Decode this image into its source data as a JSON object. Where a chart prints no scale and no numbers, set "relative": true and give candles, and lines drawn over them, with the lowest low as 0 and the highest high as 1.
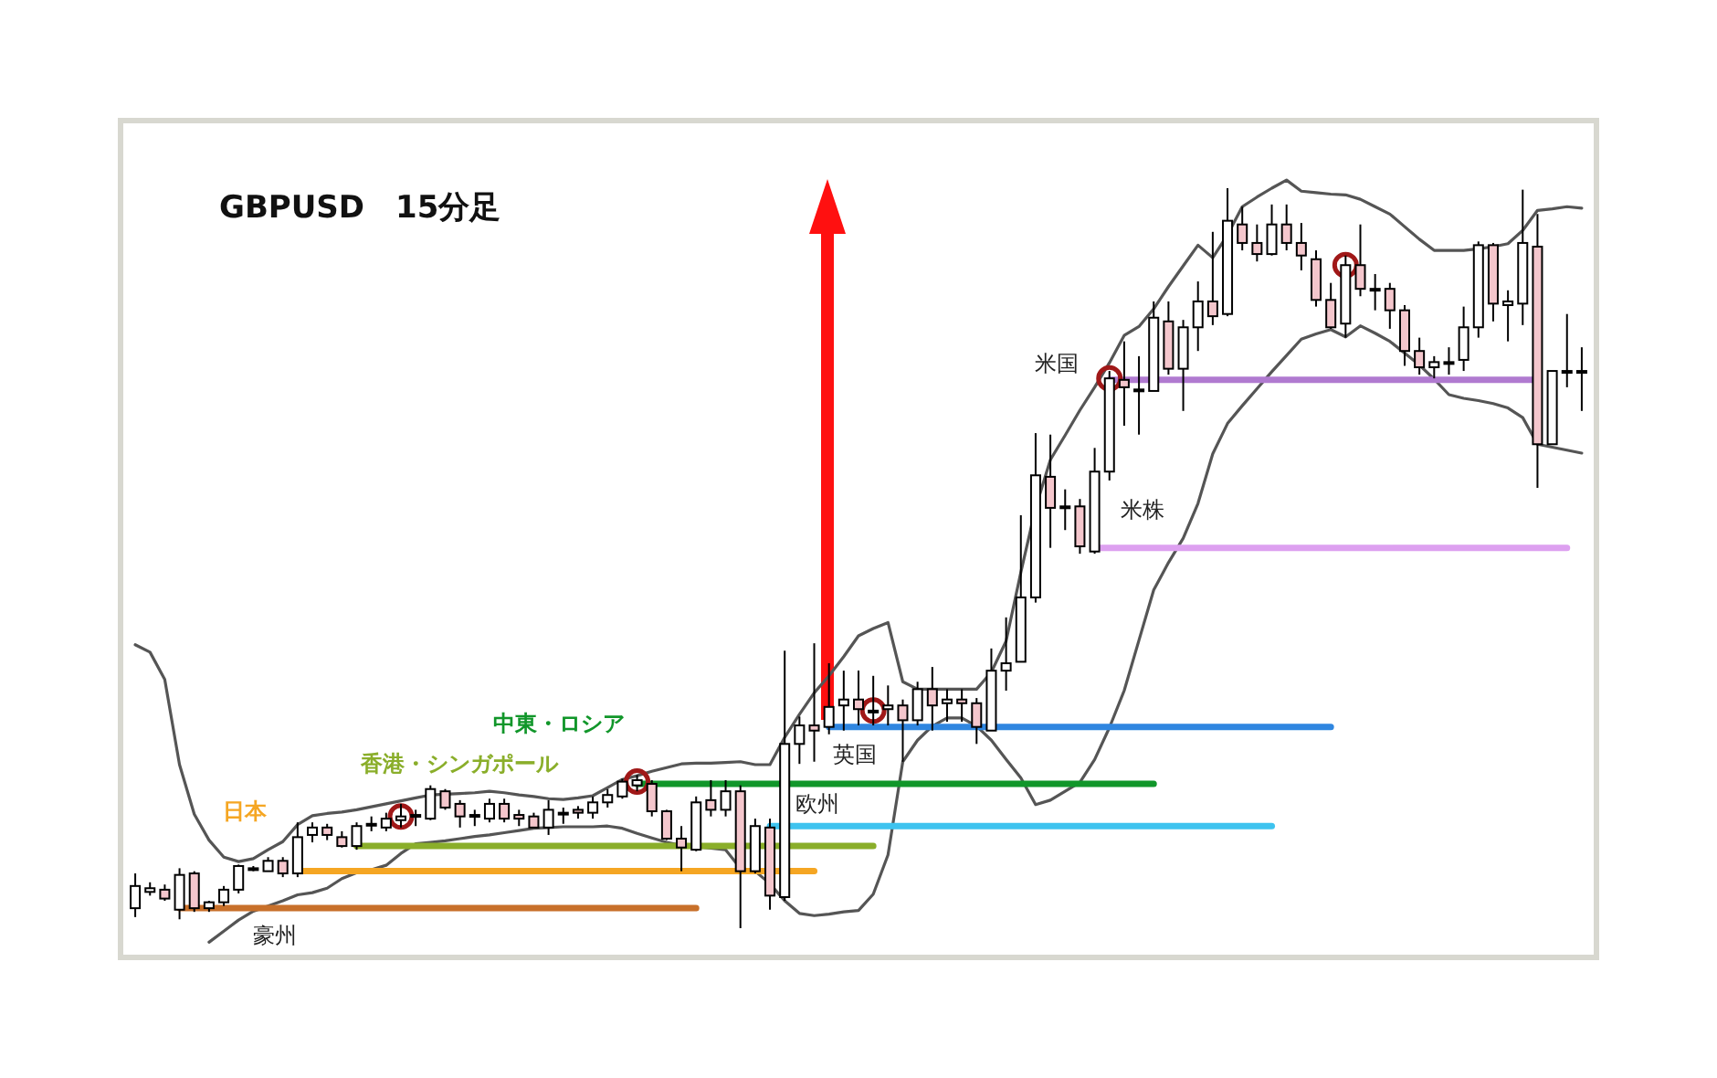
{
  "chart_data": {
    "type": "candlestick",
    "relative": true,
    "title": "GBPUSD　15分足",
    "categories": [
      null,
      null,
      null,
      null,
      null,
      null,
      null,
      null,
      null,
      null,
      null,
      null,
      null,
      null,
      null,
      null,
      null,
      null,
      null,
      null,
      null,
      null,
      null,
      null,
      null,
      null,
      null,
      null,
      null,
      null,
      null,
      null,
      null,
      null,
      null,
      null,
      null,
      null,
      null,
      null,
      null,
      null,
      null,
      null,
      null,
      null,
      null,
      null,
      null,
      null,
      null,
      null,
      null,
      null,
      null,
      null,
      null,
      null,
      null,
      null,
      null,
      null,
      null,
      null,
      null,
      null,
      null,
      null,
      null,
      null,
      null,
      null,
      null,
      null,
      null,
      null,
      null,
      null,
      null,
      null,
      null,
      null,
      null,
      null,
      null,
      null,
      null,
      null,
      null,
      null,
      null,
      null,
      null,
      null,
      null,
      null,
      null,
      null,
      null
    ],
    "ohlc": [
      [
        0.027,
        0.074,
        0.015,
        0.057
      ],
      [
        0.049,
        0.062,
        0.044,
        0.054
      ],
      [
        0.052,
        0.059,
        0.037,
        0.04
      ],
      [
        0.025,
        0.081,
        0.012,
        0.072
      ],
      [
        0.074,
        0.077,
        0.022,
        0.027
      ],
      [
        0.027,
        0.037,
        0.022,
        0.035
      ],
      [
        0.035,
        0.057,
        0.03,
        0.052
      ],
      [
        0.052,
        0.086,
        0.047,
        0.084
      ],
      [
        0.081,
        0.084,
        0.077,
        0.081
      ],
      [
        0.077,
        0.096,
        0.077,
        0.091
      ],
      [
        0.091,
        0.096,
        0.069,
        0.074
      ],
      [
        0.074,
        0.143,
        0.069,
        0.123
      ],
      [
        0.126,
        0.143,
        0.116,
        0.136
      ],
      [
        0.136,
        0.141,
        0.119,
        0.126
      ],
      [
        0.123,
        0.131,
        0.109,
        0.111
      ],
      [
        0.111,
        0.143,
        0.106,
        0.138
      ],
      [
        0.141,
        0.151,
        0.131,
        0.141
      ],
      [
        0.136,
        0.156,
        0.131,
        0.148
      ],
      [
        0.146,
        0.168,
        0.136,
        0.151
      ],
      [
        0.153,
        0.16,
        0.138,
        0.153
      ],
      [
        0.148,
        0.193,
        0.146,
        0.188
      ],
      [
        0.185,
        0.188,
        0.16,
        0.163
      ],
      [
        0.168,
        0.173,
        0.136,
        0.151
      ],
      [
        0.153,
        0.16,
        0.138,
        0.153
      ],
      [
        0.148,
        0.175,
        0.143,
        0.168
      ],
      [
        0.168,
        0.175,
        0.143,
        0.148
      ],
      [
        0.153,
        0.16,
        0.138,
        0.148
      ],
      [
        0.151,
        0.156,
        0.136,
        0.136
      ],
      [
        0.136,
        0.173,
        0.126,
        0.16
      ],
      [
        0.156,
        0.163,
        0.141,
        0.156
      ],
      [
        0.16,
        0.165,
        0.148,
        0.156
      ],
      [
        0.156,
        0.178,
        0.148,
        0.17
      ],
      [
        0.17,
        0.188,
        0.163,
        0.18
      ],
      [
        0.178,
        0.202,
        0.175,
        0.198
      ],
      [
        0.193,
        0.207,
        0.185,
        0.2
      ],
      [
        0.195,
        0.2,
        0.151,
        0.158
      ],
      [
        0.158,
        0.16,
        0.119,
        0.121
      ],
      [
        0.121,
        0.138,
        0.077,
        0.109
      ],
      [
        0.106,
        0.178,
        0.104,
        0.17
      ],
      [
        0.173,
        0.2,
        0.151,
        0.16
      ],
      [
        0.16,
        0.2,
        0.151,
        0.185
      ],
      [
        0.185,
        0.193,
        0,
        0.077
      ],
      [
        0.077,
        0.148,
        0.074,
        0.138
      ],
      [
        0.136,
        0.148,
        0.025,
        0.044
      ],
      [
        0.042,
        0.375,
        0.037,
        0.249
      ],
      [
        0.249,
        0.286,
        0.222,
        0.274
      ],
      [
        0.274,
        0.385,
        0.225,
        0.267
      ],
      [
        0.272,
        0.358,
        0.262,
        0.299
      ],
      [
        0.301,
        0.348,
        0.267,
        0.309
      ],
      [
        0.309,
        0.348,
        0.274,
        0.296
      ],
      [
        0.294,
        0.341,
        0.274,
        0.294
      ],
      [
        0.296,
        0.328,
        0.274,
        0.301
      ],
      [
        0.301,
        0.309,
        0.225,
        0.281
      ],
      [
        0.281,
        0.333,
        0.274,
        0.323
      ],
      [
        0.323,
        0.353,
        0.267,
        0.301
      ],
      [
        0.304,
        0.323,
        0.279,
        0.309
      ],
      [
        0.309,
        0.323,
        0.279,
        0.304
      ],
      [
        0.304,
        0.311,
        0.249,
        0.272
      ],
      [
        0.267,
        0.378,
        0.267,
        0.348
      ],
      [
        0.348,
        0.42,
        0.321,
        0.358
      ],
      [
        0.36,
        0.558,
        0.36,
        0.447
      ],
      [
        0.447,
        0.669,
        0.44,
        0.612
      ],
      [
        0.61,
        0.667,
        0.514,
        0.568
      ],
      [
        0.568,
        0.593,
        0.538,
        0.57
      ],
      [
        0.57,
        0.58,
        0.506,
        0.516
      ],
      [
        0.509,
        0.649,
        0.506,
        0.617
      ],
      [
        0.617,
        0.753,
        0.605,
        0.743
      ],
      [
        0.741,
        0.793,
        0.679,
        0.731
      ],
      [
        0.728,
        0.773,
        0.667,
        0.728
      ],
      [
        0.726,
        0.847,
        0.726,
        0.825
      ],
      [
        0.82,
        0.847,
        0.748,
        0.756
      ],
      [
        0.756,
        0.822,
        0.699,
        0.812
      ],
      [
        0.812,
        0.874,
        0.78,
        0.847
      ],
      [
        0.847,
        0.941,
        0.815,
        0.827
      ],
      [
        0.83,
        1,
        0.827,
        0.956
      ],
      [
        0.951,
        0.975,
        0.916,
        0.926
      ],
      [
        0.926,
        0.951,
        0.901,
        0.911
      ],
      [
        0.911,
        0.978,
        0.909,
        0.951
      ],
      [
        0.951,
        0.978,
        0.916,
        0.926
      ],
      [
        0.926,
        0.953,
        0.889,
        0.909
      ],
      [
        0.904,
        0.916,
        0.84,
        0.849
      ],
      [
        0.849,
        0.872,
        0.81,
        0.812
      ],
      [
        0.817,
        0.909,
        0.798,
        0.896
      ],
      [
        0.896,
        0.951,
        0.854,
        0.864
      ],
      [
        0.864,
        0.884,
        0.835,
        0.864
      ],
      [
        0.864,
        0.872,
        0.81,
        0.835
      ],
      [
        0.835,
        0.842,
        0.76,
        0.78
      ],
      [
        0.78,
        0.798,
        0.748,
        0.758
      ],
      [
        0.758,
        0.773,
        0.743,
        0.765
      ],
      [
        0.765,
        0.785,
        0.748,
        0.765
      ],
      [
        0.768,
        0.84,
        0.753,
        0.812
      ],
      [
        0.812,
        0.928,
        0.798,
        0.923
      ],
      [
        0.923,
        0.926,
        0.82,
        0.844
      ],
      [
        0.842,
        0.862,
        0.793,
        0.847
      ],
      [
        0.844,
        0.998,
        0.815,
        0.926
      ],
      [
        0.921,
        0.965,
        0.595,
        0.654
      ],
      [
        0.654,
        0.753,
        0.654,
        0.753
      ],
      [
        0.753,
        0.83,
        0.731,
        0.753
      ],
      [
        0.753,
        0.785,
        0.699,
        0.753
      ]
    ],
    "series": [
      {
        "type": "line",
        "color": "#555555",
        "values": [
          0.383,
          0.373,
          0.336,
          0.221,
          0.154,
          0.119,
          0.096,
          0.09,
          0.094,
          0.106,
          0.117,
          0.14,
          0.152,
          0.155,
          0.157,
          0.16,
          0.164,
          0.168,
          0.172,
          0.176,
          0.18,
          0.181,
          0.182,
          0.183,
          0.185,
          0.183,
          0.18,
          0.178,
          0.175,
          0.174,
          0.176,
          0.179,
          0.19,
          0.201,
          0.206,
          0.212,
          0.217,
          0.222,
          0.223,
          0.223,
          0.224,
          0.225,
          0.221,
          0.221,
          0.258,
          0.289,
          0.318,
          0.341,
          0.367,
          0.395,
          0.405,
          0.413,
          0.333,
          0.323,
          0.323,
          0.323,
          0.323,
          0.323,
          0.346,
          0.388,
          0.481,
          0.568,
          0.633,
          0.666,
          0.7,
          0.731,
          0.764,
          0.801,
          0.813,
          0.837,
          0.867,
          0.895,
          0.923,
          0.906,
          0.937,
          0.975,
          0.988,
          1.0,
          1.011,
          0.996,
          0.994,
          0.992,
          0.991,
          0.985,
          0.975,
          0.965,
          0.948,
          0.931,
          0.916,
          0.916,
          0.916,
          0.918,
          0.921,
          0.925,
          0.943,
          0.97,
          0.972,
          0.975,
          0.973
        ]
      },
      {
        "type": "line",
        "color": "#555555",
        "values": [
          null,
          null,
          null,
          null,
          null,
          -0.019,
          -0.004,
          0.011,
          0.023,
          0.03,
          0.037,
          0.045,
          0.048,
          0.054,
          0.067,
          0.075,
          0.079,
          0.085,
          0.101,
          0.114,
          0.116,
          0.118,
          0.121,
          0.124,
          0.126,
          0.129,
          0.132,
          0.135,
          0.136,
          0.137,
          0.137,
          0.137,
          0.138,
          0.135,
          0.128,
          0.122,
          0.116,
          0.112,
          0.11,
          0.108,
          0.106,
          0.081,
          0.077,
          0.06,
          0.037,
          0.02,
          0.017,
          0.019,
          0.022,
          0.024,
          0.046,
          0.099,
          0.225,
          0.254,
          0.273,
          0.284,
          0.284,
          0.273,
          0.254,
          0.228,
          0.203,
          0.167,
          0.173,
          0.185,
          0.197,
          0.228,
          0.271,
          0.321,
          0.389,
          0.457,
          0.494,
          0.527,
          0.574,
          0.641,
          0.682,
          0.706,
          0.729,
          0.752,
          0.774,
          0.796,
          0.803,
          0.809,
          0.799,
          0.814,
          0.804,
          0.793,
          0.777,
          0.761,
          0.742,
          0.721,
          0.716,
          0.713,
          0.709,
          0.703,
          0.69,
          0.654,
          0.65,
          0.646,
          0.642
        ]
      },
      {
        "type": "line",
        "name": "豪州",
        "color": "#c8702a",
        "values": [
          null,
          null,
          null,
          0.027,
          0.027,
          0.027,
          0.027,
          0.027,
          0.027,
          0.027,
          0.027,
          0.027,
          0.027,
          0.027,
          0.027,
          0.027,
          0.027,
          0.027,
          0.027,
          0.027,
          0.027,
          0.027,
          0.027,
          0.027,
          0.027,
          0.027,
          0.027,
          0.027,
          0.027,
          0.027,
          0.027,
          0.027,
          0.027,
          0.027,
          0.027,
          0.027,
          0.027,
          0.027,
          0.027,
          null,
          null,
          null,
          null,
          null,
          null,
          null,
          null,
          null,
          null,
          null,
          null,
          null,
          null,
          null,
          null,
          null,
          null,
          null,
          null,
          null,
          null,
          null,
          null,
          null,
          null,
          null,
          null,
          null,
          null,
          null,
          null,
          null,
          null,
          null,
          null,
          null,
          null,
          null,
          null,
          null,
          null,
          null,
          null,
          null,
          null,
          null,
          null,
          null,
          null,
          null,
          null,
          null,
          null,
          null,
          null,
          null,
          null,
          null,
          null
        ]
      },
      {
        "type": "line",
        "name": "日本",
        "color": "#f5a623",
        "values": [
          null,
          null,
          null,
          null,
          null,
          null,
          null,
          null,
          null,
          null,
          null,
          0.077,
          0.077,
          0.077,
          0.077,
          0.077,
          0.077,
          0.077,
          0.077,
          0.077,
          0.077,
          0.077,
          0.077,
          0.077,
          0.077,
          0.077,
          0.077,
          0.077,
          0.077,
          0.077,
          0.077,
          0.077,
          0.077,
          0.077,
          0.077,
          0.077,
          0.077,
          0.077,
          0.077,
          0.077,
          0.077,
          0.077,
          0.077,
          0.077,
          0.077,
          0.077,
          0.077,
          null,
          null,
          null,
          null,
          null,
          null,
          null,
          null,
          null,
          null,
          null,
          null,
          null,
          null,
          null,
          null,
          null,
          null,
          null,
          null,
          null,
          null,
          null,
          null,
          null,
          null,
          null,
          null,
          null,
          null,
          null,
          null,
          null,
          null,
          null,
          null,
          null,
          null,
          null,
          null,
          null,
          null,
          null,
          null,
          null,
          null,
          null,
          null,
          null,
          null,
          null,
          null
        ]
      },
      {
        "type": "line",
        "name": "香港・シンガポール",
        "color": "#8aae2a",
        "values": [
          null,
          null,
          null,
          null,
          null,
          null,
          null,
          null,
          null,
          null,
          null,
          null,
          null,
          null,
          null,
          0.111,
          0.111,
          0.111,
          0.111,
          0.111,
          0.111,
          0.111,
          0.111,
          0.111,
          0.111,
          0.111,
          0.111,
          0.111,
          0.111,
          0.111,
          0.111,
          0.111,
          0.111,
          0.111,
          0.111,
          0.111,
          0.111,
          0.111,
          0.111,
          0.111,
          0.111,
          0.111,
          0.111,
          0.111,
          0.111,
          0.111,
          0.111,
          0.111,
          0.111,
          0.111,
          0.111,
          null,
          null,
          null,
          null,
          null,
          null,
          null,
          null,
          null,
          null,
          null,
          null,
          null,
          null,
          null,
          null,
          null,
          null,
          null,
          null,
          null,
          null,
          null,
          null,
          null,
          null,
          null,
          null,
          null,
          null,
          null,
          null,
          null,
          null,
          null,
          null,
          null,
          null,
          null,
          null,
          null,
          null,
          null,
          null,
          null,
          null,
          null,
          null
        ]
      },
      {
        "type": "line",
        "name": "中東・ロシア",
        "color": "#11962a",
        "values": [
          null,
          null,
          null,
          null,
          null,
          null,
          null,
          null,
          null,
          null,
          null,
          null,
          null,
          null,
          null,
          null,
          null,
          null,
          null,
          null,
          null,
          null,
          null,
          null,
          null,
          null,
          null,
          null,
          null,
          null,
          null,
          null,
          null,
          null,
          0.195,
          0.195,
          0.195,
          0.195,
          0.195,
          0.195,
          0.195,
          0.195,
          0.195,
          0.195,
          0.195,
          0.195,
          0.195,
          0.195,
          0.195,
          0.195,
          0.195,
          0.195,
          0.195,
          0.195,
          0.195,
          0.195,
          0.195,
          0.195,
          0.195,
          0.195,
          0.195,
          0.195,
          0.195,
          0.195,
          0.195,
          0.195,
          0.195,
          0.195,
          0.195,
          0.195,
          null,
          null,
          null,
          null,
          null,
          null,
          null,
          null,
          null,
          null,
          null,
          null,
          null,
          null,
          null,
          null,
          null,
          null,
          null,
          null,
          null,
          null,
          null,
          null,
          null,
          null,
          null,
          null,
          null
        ]
      },
      {
        "type": "line",
        "name": "欧州",
        "color": "#3ec3ef",
        "values": [
          null,
          null,
          null,
          null,
          null,
          null,
          null,
          null,
          null,
          null,
          null,
          null,
          null,
          null,
          null,
          null,
          null,
          null,
          null,
          null,
          null,
          null,
          null,
          null,
          null,
          null,
          null,
          null,
          null,
          null,
          null,
          null,
          null,
          null,
          null,
          null,
          null,
          null,
          null,
          null,
          null,
          null,
          null,
          0.138,
          0.138,
          0.138,
          0.138,
          0.138,
          0.138,
          0.138,
          0.138,
          0.138,
          0.138,
          0.138,
          0.138,
          0.138,
          0.138,
          0.138,
          0.138,
          0.138,
          0.138,
          0.138,
          0.138,
          0.138,
          0.138,
          0.138,
          0.138,
          0.138,
          0.138,
          0.138,
          0.138,
          0.138,
          0.138,
          0.138,
          0.138,
          0.138,
          0.138,
          0.138,
          null,
          null,
          null,
          null,
          null,
          null,
          null,
          null,
          null,
          null,
          null,
          null,
          null,
          null,
          null,
          null,
          null,
          null,
          null,
          null,
          null
        ]
      },
      {
        "type": "line",
        "name": "英国",
        "color": "#2f86e0",
        "values": [
          null,
          null,
          null,
          null,
          null,
          null,
          null,
          null,
          null,
          null,
          null,
          null,
          null,
          null,
          null,
          null,
          null,
          null,
          null,
          null,
          null,
          null,
          null,
          null,
          null,
          null,
          null,
          null,
          null,
          null,
          null,
          null,
          null,
          null,
          null,
          null,
          null,
          null,
          null,
          null,
          null,
          null,
          null,
          null,
          null,
          null,
          null,
          0.272,
          0.272,
          0.272,
          0.272,
          0.272,
          0.272,
          0.272,
          0.272,
          0.272,
          0.272,
          0.272,
          0.272,
          0.272,
          0.272,
          0.272,
          0.272,
          0.272,
          0.272,
          0.272,
          0.272,
          0.272,
          0.272,
          0.272,
          0.272,
          0.272,
          0.272,
          0.272,
          0.272,
          0.272,
          0.272,
          0.272,
          0.272,
          0.272,
          0.272,
          0.272,
          null,
          null,
          null,
          null,
          null,
          null,
          null,
          null,
          null,
          null,
          null,
          null,
          null,
          null,
          null,
          null,
          null
        ]
      },
      {
        "type": "line",
        "name": "米国",
        "color": "#b07ad0",
        "values": [
          null,
          null,
          null,
          null,
          null,
          null,
          null,
          null,
          null,
          null,
          null,
          null,
          null,
          null,
          null,
          null,
          null,
          null,
          null,
          null,
          null,
          null,
          null,
          null,
          null,
          null,
          null,
          null,
          null,
          null,
          null,
          null,
          null,
          null,
          null,
          null,
          null,
          null,
          null,
          null,
          null,
          null,
          null,
          null,
          null,
          null,
          null,
          null,
          null,
          null,
          null,
          null,
          null,
          null,
          null,
          null,
          null,
          null,
          null,
          null,
          null,
          null,
          null,
          null,
          null,
          null,
          0.741,
          0.741,
          0.741,
          0.741,
          0.741,
          0.741,
          0.741,
          0.741,
          0.741,
          0.741,
          0.741,
          0.741,
          0.741,
          0.741,
          0.741,
          0.741,
          0.741,
          0.741,
          0.741,
          0.741,
          0.741,
          0.741,
          0.741,
          0.741,
          0.741,
          0.741,
          0.741,
          0.741,
          0.741,
          0.741,
          null,
          null,
          null
        ]
      },
      {
        "type": "line",
        "name": "米株",
        "color": "#dda0f0",
        "values": [
          null,
          null,
          null,
          null,
          null,
          null,
          null,
          null,
          null,
          null,
          null,
          null,
          null,
          null,
          null,
          null,
          null,
          null,
          null,
          null,
          null,
          null,
          null,
          null,
          null,
          null,
          null,
          null,
          null,
          null,
          null,
          null,
          null,
          null,
          null,
          null,
          null,
          null,
          null,
          null,
          null,
          null,
          null,
          null,
          null,
          null,
          null,
          null,
          null,
          null,
          null,
          null,
          null,
          null,
          null,
          null,
          null,
          null,
          null,
          null,
          null,
          null,
          null,
          null,
          null,
          0.514,
          0.514,
          0.514,
          0.514,
          0.514,
          0.514,
          0.514,
          0.514,
          0.514,
          0.514,
          0.514,
          0.514,
          0.514,
          0.514,
          0.514,
          0.514,
          0.514,
          0.514,
          0.514,
          0.514,
          0.514,
          0.514,
          0.514,
          0.514,
          0.514,
          0.514,
          0.514,
          0.514,
          0.514,
          0.514,
          0.514,
          0.514,
          0.514,
          null
        ]
      },
      {
        "type": "scatter",
        "marker": "circle",
        "color": "#a01818",
        "values": [
          null,
          null,
          null,
          null,
          null,
          null,
          null,
          null,
          null,
          null,
          null,
          null,
          null,
          null,
          null,
          null,
          null,
          null,
          0.151,
          null,
          null,
          null,
          null,
          null,
          null,
          null,
          null,
          null,
          null,
          null,
          null,
          null,
          null,
          null,
          0.198,
          null,
          null,
          null,
          null,
          null,
          null,
          null,
          null,
          null,
          null,
          null,
          null,
          null,
          null,
          null,
          0.294,
          null,
          null,
          null,
          null,
          null,
          null,
          null,
          null,
          null,
          null,
          null,
          null,
          null,
          null,
          null,
          0.743,
          null,
          null,
          null,
          null,
          null,
          null,
          null,
          null,
          null,
          null,
          null,
          null,
          null,
          null,
          null,
          0.896,
          null,
          null,
          null,
          null,
          null,
          null,
          null,
          null,
          null,
          null,
          null,
          null,
          null,
          null,
          null,
          null
        ]
      }
    ]
  }
}
